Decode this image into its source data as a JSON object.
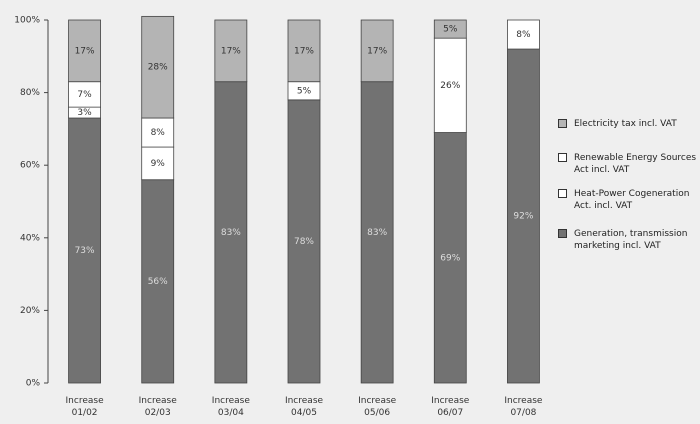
{
  "chart_data": {
    "type": "stacked_bar",
    "categories": [
      "Increase 01/02",
      "Increase 02/03",
      "Increase 03/04",
      "Increase 04/05",
      "Increase 05/06",
      "Increase 06/07",
      "Increase 07/08"
    ],
    "series": [
      {
        "name": "Generation, transmission marketing incl. VAT",
        "color": "#727272",
        "values": [
          73,
          56,
          83,
          78,
          83,
          69,
          92
        ],
        "value_labels": [
          "73%",
          "56%",
          "83%",
          "78%",
          "83%",
          "69%",
          "92%"
        ]
      },
      {
        "name": "Heat-Power Cogeneration Act. incl. VAT",
        "color": "#ffffff",
        "values": [
          3,
          9,
          null,
          null,
          null,
          null,
          null
        ],
        "value_labels": [
          "3%",
          "9%",
          null,
          null,
          null,
          null,
          null
        ]
      },
      {
        "name": "Renewable Energy Sources Act incl. VAT",
        "color": "#ffffff",
        "values": [
          7,
          8,
          null,
          5,
          null,
          26,
          8
        ],
        "value_labels": [
          "7%",
          "8%",
          null,
          "5%",
          null,
          "26%",
          "8%"
        ]
      },
      {
        "name": "Electricity tax incl. VAT",
        "color": "#b4b4b4",
        "values": [
          17,
          28,
          17,
          17,
          17,
          5,
          null
        ],
        "value_labels": [
          "17%",
          "28%",
          "17%",
          "17%",
          "17%",
          "5%",
          null
        ]
      }
    ],
    "ylim": [
      0,
      100
    ],
    "yticks": [
      {
        "value": 0,
        "label": "0%"
      },
      {
        "value": 20,
        "label": "20%"
      },
      {
        "value": 40,
        "label": "40%"
      },
      {
        "value": 60,
        "label": "60%"
      },
      {
        "value": 80,
        "label": "80%"
      },
      {
        "value": 100,
        "label": "100%"
      }
    ],
    "legend": "right"
  }
}
